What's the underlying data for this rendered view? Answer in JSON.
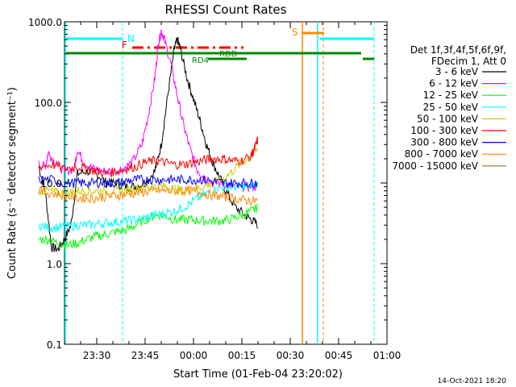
{
  "chart_data": {
    "type": "line",
    "title": "RHESSI Count Rates",
    "xlabel": "Start Time (01-Feb-04 23:20:02)",
    "ylabel": "Count Rate (s⁻¹ detector segment⁻¹)",
    "y_scale": "log",
    "ylim": [
      0.1,
      1000.0
    ],
    "y_tick_labels": [
      "0.1",
      "1.0",
      "10.0",
      "100.0",
      "1000.0"
    ],
    "y_ticks": [
      0.1,
      1,
      10,
      100,
      1000
    ],
    "xlim": [
      "23:20",
      "01:00"
    ],
    "x_tick_labels": [
      "23:30",
      "23:45",
      "00:00",
      "00:15",
      "00:30",
      "00:45",
      "01:00"
    ],
    "legend_header": [
      "Det 1f,3f,4f,5f,6f,9f,",
      "FDecim 1, Att 0"
    ],
    "legend_placement": "right, outside plot",
    "series": [
      {
        "name": "3 - 6 keV",
        "color": "#000000",
        "points": [
          [
            -48,
            16
          ],
          [
            -46,
            8
          ],
          [
            -44,
            1.6
          ],
          [
            -42,
            1.5
          ],
          [
            -40,
            2
          ],
          [
            -38,
            3
          ],
          [
            -36,
            13
          ],
          [
            -33,
            14
          ],
          [
            -30,
            13
          ],
          [
            -27,
            10
          ],
          [
            -24,
            10
          ],
          [
            -21,
            9
          ],
          [
            -18,
            9
          ],
          [
            -15,
            10
          ],
          [
            -12,
            14
          ],
          [
            -10,
            30
          ],
          [
            -8,
            120
          ],
          [
            -6,
            450
          ],
          [
            -5,
            600
          ],
          [
            -4,
            450
          ],
          [
            -2,
            200
          ],
          [
            0,
            110
          ],
          [
            2,
            60
          ],
          [
            4,
            30
          ],
          [
            6,
            18
          ],
          [
            8,
            12
          ],
          [
            10,
            8
          ],
          [
            13,
            5
          ],
          [
            16,
            4
          ],
          [
            18,
            3.5
          ],
          [
            20,
            3
          ]
        ]
      },
      {
        "name": "6 - 12 keV",
        "color": "#ff00ff",
        "points": [
          [
            -48,
            17
          ],
          [
            -46,
            16
          ],
          [
            -45,
            24
          ],
          [
            -43,
            18
          ],
          [
            -40,
            14
          ],
          [
            -37,
            15
          ],
          [
            -36,
            26
          ],
          [
            -34,
            18
          ],
          [
            -31,
            15
          ],
          [
            -28,
            14
          ],
          [
            -25,
            14
          ],
          [
            -22,
            15
          ],
          [
            -19,
            18
          ],
          [
            -16,
            30
          ],
          [
            -14,
            70
          ],
          [
            -12,
            200
          ],
          [
            -11,
            500
          ],
          [
            -10,
            780
          ],
          [
            -9,
            600
          ],
          [
            -7,
            300
          ],
          [
            -5,
            120
          ],
          [
            -3,
            50
          ],
          [
            -1,
            26
          ],
          [
            1,
            15
          ],
          [
            3,
            12
          ],
          [
            6,
            10
          ],
          [
            9,
            10
          ],
          [
            12,
            9
          ],
          [
            15,
            9
          ],
          [
            18,
            9
          ],
          [
            20,
            9
          ]
        ]
      },
      {
        "name": "12 - 25 keV",
        "color": "#00ff00",
        "points": [
          [
            -48,
            2
          ],
          [
            -45,
            2
          ],
          [
            -42,
            1.8
          ],
          [
            -39,
            1.7
          ],
          [
            -36,
            1.8
          ],
          [
            -33,
            2
          ],
          [
            -30,
            2.2
          ],
          [
            -27,
            2.3
          ],
          [
            -24,
            2.5
          ],
          [
            -21,
            2.6
          ],
          [
            -18,
            3
          ],
          [
            -15,
            3.5
          ],
          [
            -12,
            4
          ],
          [
            -9,
            4
          ],
          [
            -6,
            3.5
          ],
          [
            -3,
            3.5
          ],
          [
            0,
            3.5
          ],
          [
            3,
            3.4
          ],
          [
            6,
            3.4
          ],
          [
            9,
            3.4
          ],
          [
            12,
            3.6
          ],
          [
            15,
            4
          ],
          [
            18,
            4.5
          ],
          [
            20,
            5
          ]
        ]
      },
      {
        "name": "25 - 50 keV",
        "color": "#00ffff",
        "points": [
          [
            -48,
            3
          ],
          [
            -45,
            2.8
          ],
          [
            -42,
            2.8
          ],
          [
            -39,
            2.9
          ],
          [
            -36,
            3
          ],
          [
            -33,
            3
          ],
          [
            -30,
            3.1
          ],
          [
            -27,
            3.2
          ],
          [
            -24,
            3.3
          ],
          [
            -21,
            3.4
          ],
          [
            -18,
            3.5
          ],
          [
            -15,
            3.7
          ],
          [
            -12,
            4
          ],
          [
            -9,
            4.2
          ],
          [
            -6,
            4.5
          ],
          [
            -3,
            5
          ],
          [
            0,
            6
          ],
          [
            3,
            7
          ],
          [
            6,
            8
          ],
          [
            9,
            9
          ],
          [
            12,
            9
          ],
          [
            15,
            9
          ],
          [
            18,
            9
          ],
          [
            20,
            10
          ]
        ]
      },
      {
        "name": "50 - 100 keV",
        "color": "#cccc00",
        "points": [
          [
            -48,
            8
          ],
          [
            -45,
            8
          ],
          [
            -42,
            7.5
          ],
          [
            -39,
            7.5
          ],
          [
            -36,
            8
          ],
          [
            -33,
            8
          ],
          [
            -30,
            8
          ],
          [
            -27,
            8
          ],
          [
            -24,
            8
          ],
          [
            -21,
            8
          ],
          [
            -18,
            8.5
          ],
          [
            -15,
            9
          ],
          [
            -12,
            9
          ],
          [
            -9,
            9
          ],
          [
            -6,
            8.5
          ],
          [
            -3,
            8
          ],
          [
            0,
            8.5
          ],
          [
            3,
            9
          ],
          [
            6,
            10
          ],
          [
            9,
            11
          ],
          [
            12,
            14
          ],
          [
            15,
            18
          ],
          [
            18,
            22
          ],
          [
            20,
            26
          ]
        ]
      },
      {
        "name": "100 - 300 keV",
        "color": "#ff0000",
        "points": [
          [
            -48,
            16
          ],
          [
            -44,
            17
          ],
          [
            -40,
            15
          ],
          [
            -36,
            16
          ],
          [
            -33,
            15
          ],
          [
            -30,
            14
          ],
          [
            -27,
            13
          ],
          [
            -24,
            14
          ],
          [
            -21,
            15
          ],
          [
            -18,
            16
          ],
          [
            -15,
            18
          ],
          [
            -12,
            19
          ],
          [
            -9,
            18
          ],
          [
            -6,
            17
          ],
          [
            -3,
            17
          ],
          [
            0,
            18
          ],
          [
            3,
            19
          ],
          [
            6,
            20
          ],
          [
            9,
            20
          ],
          [
            12,
            19
          ],
          [
            15,
            19
          ],
          [
            18,
            22
          ],
          [
            19,
            27
          ],
          [
            20,
            35
          ]
        ]
      },
      {
        "name": "300 - 800 keV",
        "color": "#0000ff",
        "points": [
          [
            -48,
            11
          ],
          [
            -44,
            11
          ],
          [
            -40,
            10
          ],
          [
            -36,
            10
          ],
          [
            -33,
            10
          ],
          [
            -30,
            10
          ],
          [
            -27,
            10
          ],
          [
            -24,
            10
          ],
          [
            -21,
            10.5
          ],
          [
            -18,
            11
          ],
          [
            -15,
            11
          ],
          [
            -12,
            11
          ],
          [
            -9,
            11
          ],
          [
            -6,
            11
          ],
          [
            -3,
            11
          ],
          [
            0,
            11
          ],
          [
            3,
            11
          ],
          [
            6,
            10.5
          ],
          [
            9,
            10
          ],
          [
            12,
            10
          ],
          [
            15,
            10
          ],
          [
            18,
            10
          ],
          [
            20,
            10
          ]
        ]
      },
      {
        "name": "800 - 7000 keV",
        "color": "#ff8800",
        "points": [
          [
            -48,
            8
          ],
          [
            -44,
            7.5
          ],
          [
            -40,
            7
          ],
          [
            -36,
            6.5
          ],
          [
            -33,
            6.5
          ],
          [
            -30,
            6.5
          ],
          [
            -27,
            6.8
          ],
          [
            -24,
            7
          ],
          [
            -21,
            7.2
          ],
          [
            -18,
            7.5
          ],
          [
            -15,
            7.8
          ],
          [
            -12,
            8
          ],
          [
            -9,
            8
          ],
          [
            -6,
            8
          ],
          [
            -3,
            8
          ],
          [
            0,
            8
          ],
          [
            3,
            7.5
          ],
          [
            6,
            7
          ],
          [
            9,
            6.8
          ],
          [
            12,
            6.5
          ],
          [
            15,
            6.2
          ],
          [
            18,
            6
          ],
          [
            20,
            6
          ]
        ]
      },
      {
        "name": "7000 - 15000 keV",
        "color": "#8b7a2e",
        "points": []
      }
    ],
    "flags": [
      {
        "label": "F",
        "color": "#ff0000",
        "dashed": true
      },
      {
        "label": "N",
        "color": "#00ffff",
        "dashed": false
      },
      {
        "label": "RDD",
        "color": "#008800",
        "dashed": false
      },
      {
        "label": "RD4",
        "color": "#008800",
        "dashed": false
      },
      {
        "label": "S",
        "color": "#ff8800",
        "dashed": false
      }
    ],
    "grid": false
  },
  "footer": {
    "timestamp": "14-Oct-2021 18:20"
  }
}
